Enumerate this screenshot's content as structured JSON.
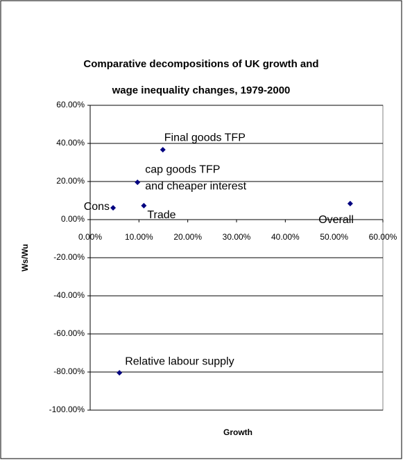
{
  "chart_data": {
    "type": "scatter",
    "title": [
      "Comparative decompositions of UK growth and",
      "wage inequality changes, 1979-2000"
    ],
    "x_label": "Growth",
    "y_label": "Ws/Wu",
    "color": "#000080",
    "grid": true,
    "xlim": [
      0,
      60
    ],
    "ylim": [
      -100,
      60
    ],
    "xticks": [
      {
        "value": 0,
        "label": "0.00%"
      },
      {
        "value": 10,
        "label": "10.00%"
      },
      {
        "value": 20,
        "label": "20.00%"
      },
      {
        "value": 30,
        "label": "30.00%"
      },
      {
        "value": 40,
        "label": "40.00%"
      },
      {
        "value": 50,
        "label": "50.00%"
      },
      {
        "value": 60,
        "label": "60.00%"
      }
    ],
    "yticks": [
      {
        "value": 60,
        "label": "60.00%"
      },
      {
        "value": 40,
        "label": "40.00%"
      },
      {
        "value": 20,
        "label": "20.00%"
      },
      {
        "value": 0,
        "label": "0.00%"
      },
      {
        "value": -20,
        "label": "-20.00%"
      },
      {
        "value": -40,
        "label": "-40.00%"
      },
      {
        "value": -60,
        "label": "-60.00%"
      },
      {
        "value": -80,
        "label": "-80.00%"
      },
      {
        "value": -100,
        "label": "-100.00%"
      }
    ],
    "points": [
      {
        "label": [
          "Cons"
        ],
        "x": 4.7,
        "y": 6.2
      },
      {
        "label": [
          "cap goods TFP",
          "and cheaper interest"
        ],
        "x": 9.7,
        "y": 19.6
      },
      {
        "label": [
          "Trade"
        ],
        "x": 11.0,
        "y": 7.3
      },
      {
        "label": [
          "Final goods TFP"
        ],
        "x": 14.9,
        "y": 36.7
      },
      {
        "label": [
          "Overall"
        ],
        "x": 53.3,
        "y": 8.4
      },
      {
        "label": [
          "Relative labour supply"
        ],
        "x": 6.0,
        "y": -80.4
      }
    ]
  }
}
